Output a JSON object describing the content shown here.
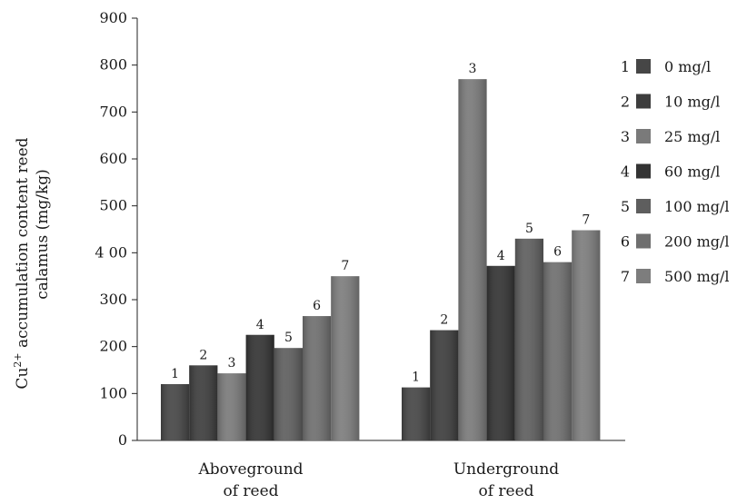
{
  "chart_data": {
    "type": "bar",
    "title": "",
    "ylabel": {
      "line1_prefix": "Cu",
      "line1_sup": "2+",
      "line1_suffix": " accumulation content reed",
      "line2": "calamus (mg/kg)"
    },
    "ylim": [
      0,
      900
    ],
    "yticks": [
      "0",
      "100",
      "200",
      "300",
      "4 00",
      "500",
      "600",
      "700",
      "800",
      "900"
    ],
    "ytick_values": [
      0,
      100,
      200,
      300,
      400,
      500,
      600,
      700,
      800,
      900
    ],
    "categories": [
      {
        "line1": "Aboveground",
        "line2": "of reed"
      },
      {
        "line1": "Underground",
        "line2": "of reed"
      }
    ],
    "series": [
      {
        "num": "1",
        "name": "0 mg/l",
        "values": [
          120,
          113
        ],
        "color": "#464646"
      },
      {
        "num": "2",
        "name": "10 mg/l",
        "values": [
          160,
          235
        ],
        "color": "#3d3d3d"
      },
      {
        "num": "3",
        "name": "25 mg/l",
        "values": [
          143,
          770
        ],
        "color": "#7a7a7a"
      },
      {
        "num": "4",
        "name": "60 mg/l",
        "values": [
          225,
          372
        ],
        "color": "#333333"
      },
      {
        "num": "5",
        "name": "100 mg/l",
        "values": [
          197,
          430
        ],
        "color": "#5e5e5e"
      },
      {
        "num": "6",
        "name": "200 mg/l",
        "values": [
          265,
          380
        ],
        "color": "#6f6f6f"
      },
      {
        "num": "7",
        "name": "500 mg/l",
        "values": [
          350,
          448
        ],
        "color": "#7d7d7d"
      }
    ],
    "grid": false,
    "legend_position": "right"
  }
}
